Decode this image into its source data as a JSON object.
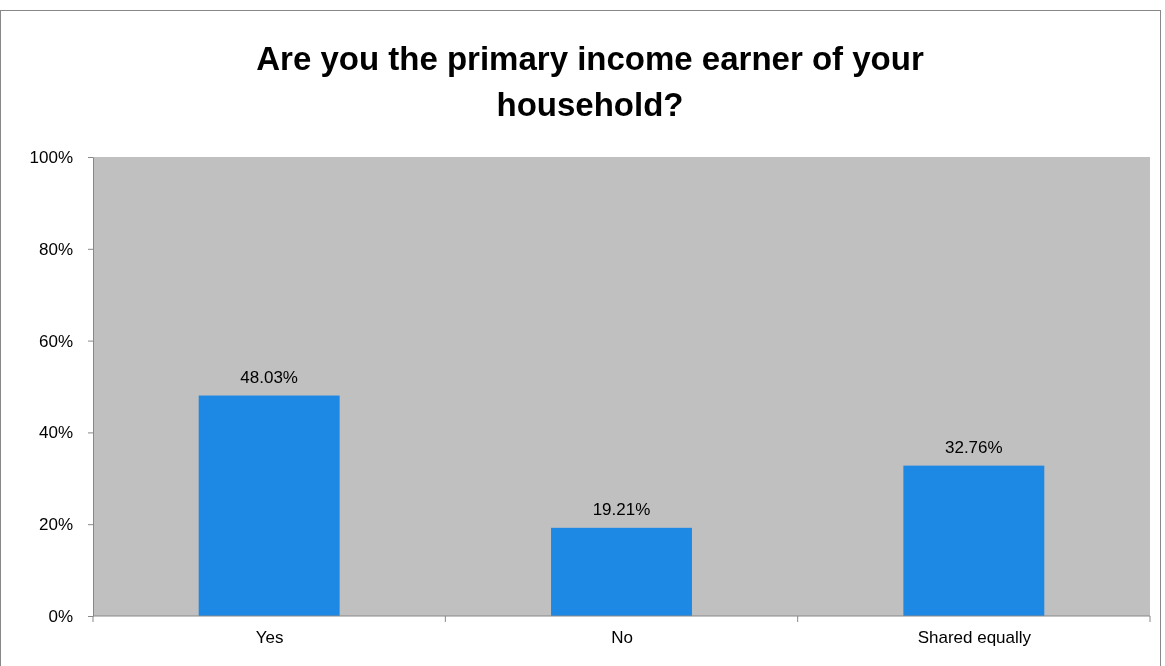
{
  "chart_data": {
    "type": "bar",
    "title": "Are you the primary income earner of your household?",
    "categories": [
      "Yes",
      "No",
      "Shared equally"
    ],
    "values": [
      48.03,
      19.21,
      32.76
    ],
    "value_labels": [
      "48.03%",
      "19.21%",
      "32.76%"
    ],
    "color": "#1e88e5",
    "ylim": [
      0,
      100
    ],
    "yticks": [
      {
        "value": 0,
        "label": "0%"
      },
      {
        "value": 20,
        "label": "20%"
      },
      {
        "value": 40,
        "label": "40%"
      },
      {
        "value": 60,
        "label": "60%"
      },
      {
        "value": 80,
        "label": "80%"
      },
      {
        "value": 100,
        "label": "100%"
      }
    ]
  }
}
